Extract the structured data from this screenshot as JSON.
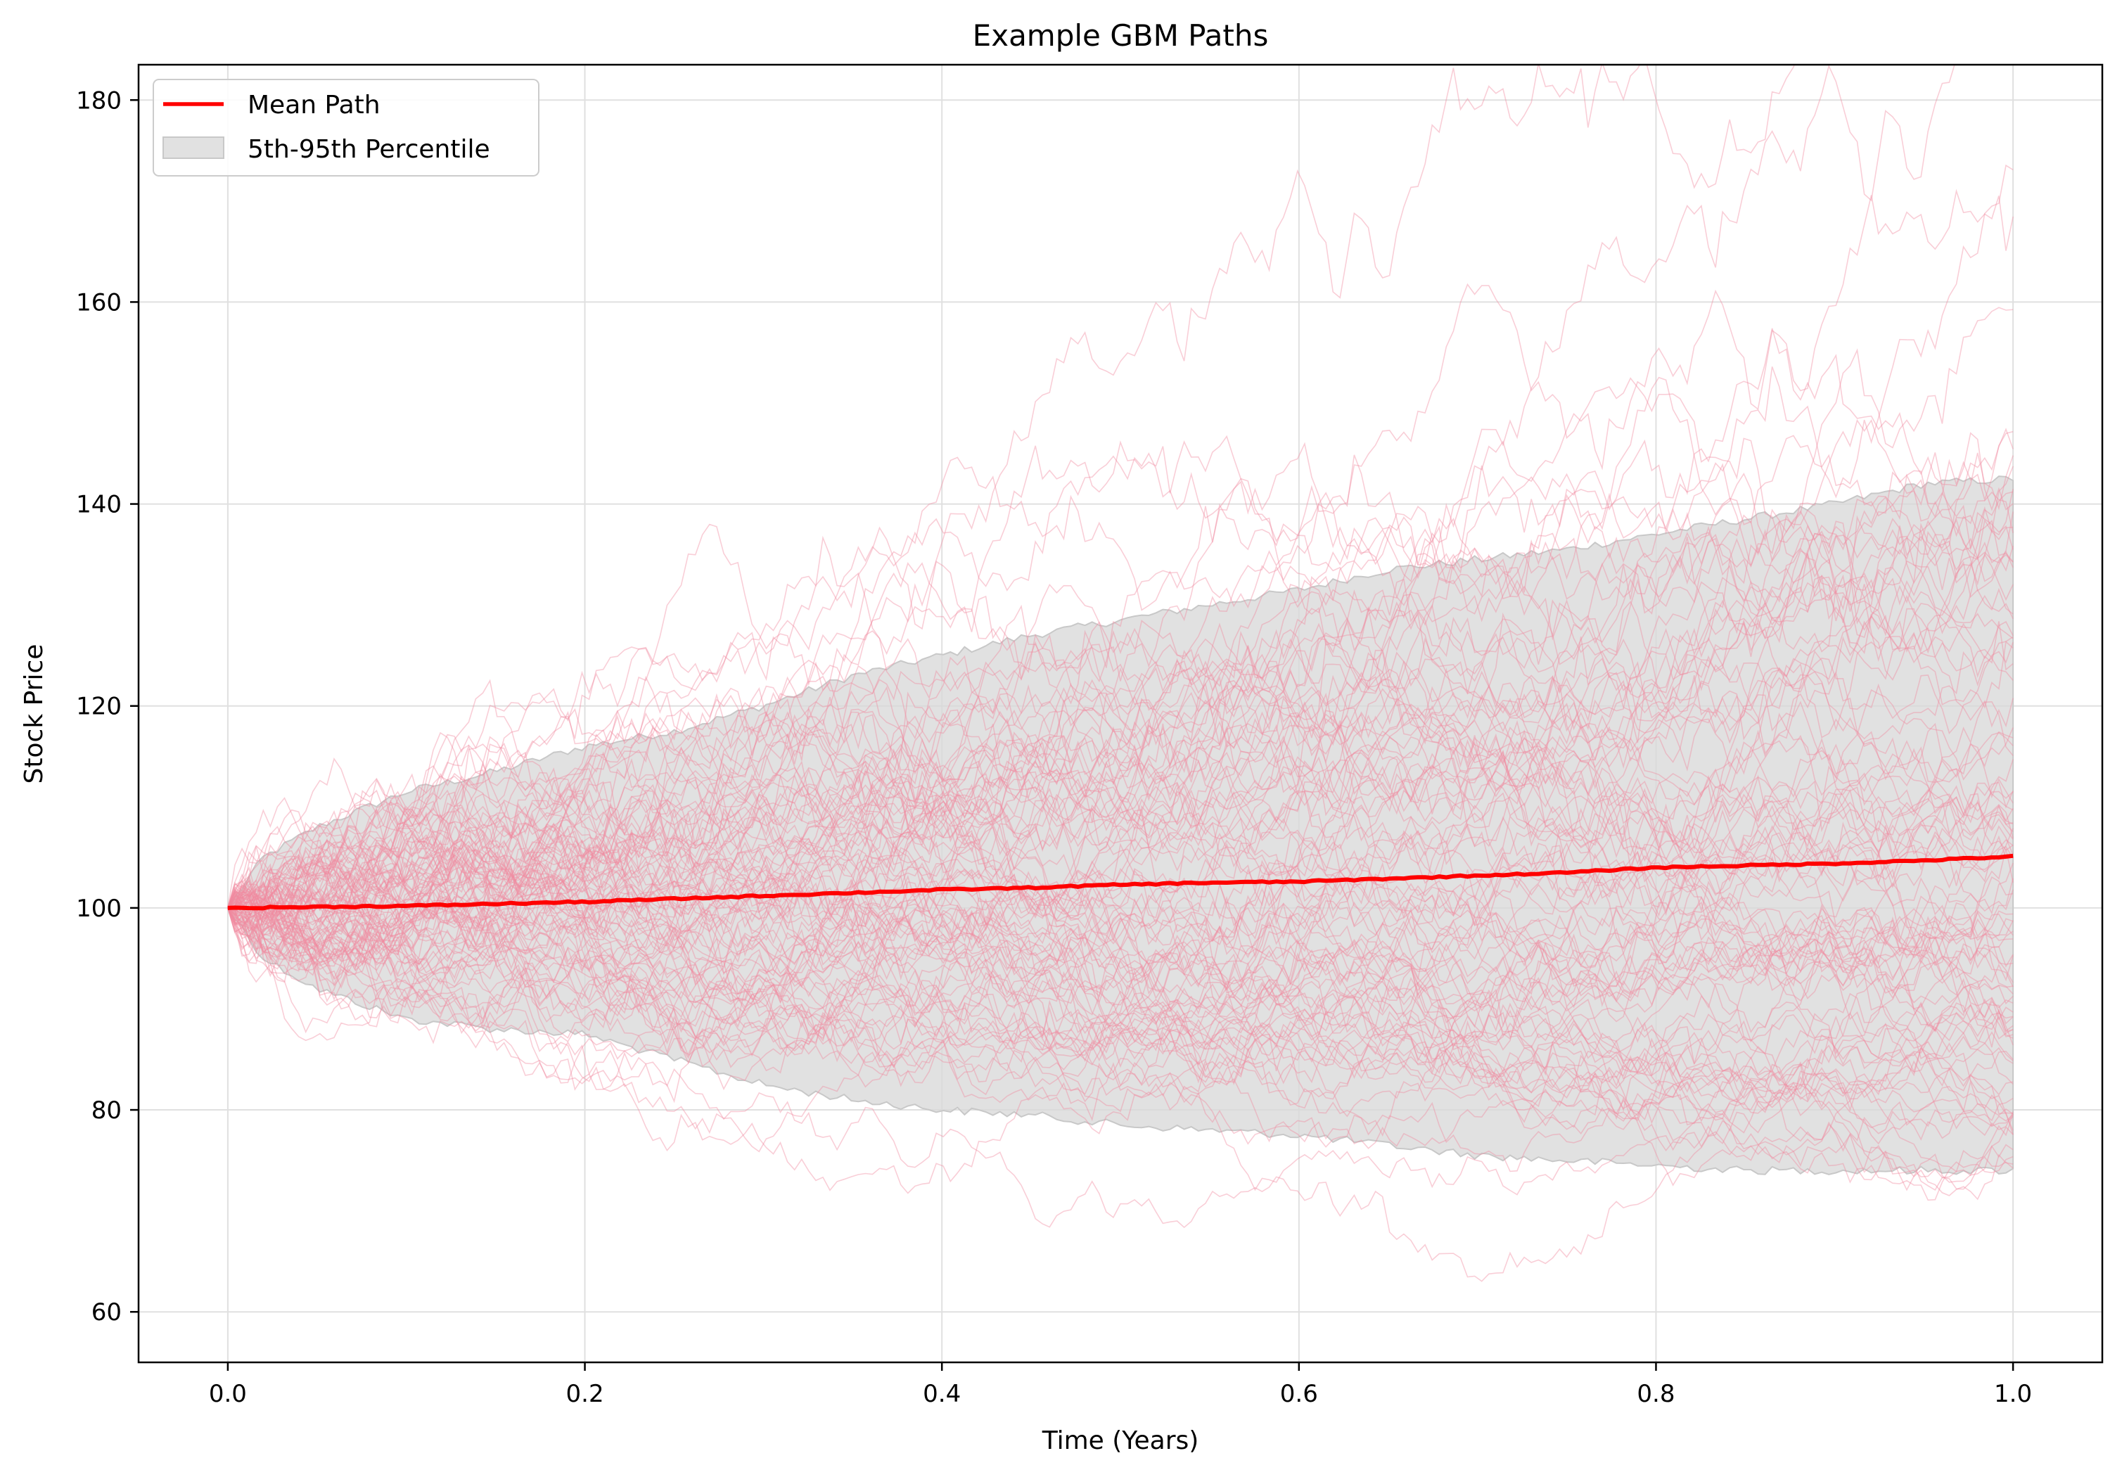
{
  "chart_data": {
    "type": "line",
    "title": "Example GBM Paths",
    "xlabel": "Time (Years)",
    "ylabel": "Stock Price",
    "xlim": [
      -0.05,
      1.05
    ],
    "ylim": [
      55,
      183.5
    ],
    "xticks": [
      0.0,
      0.2,
      0.4,
      0.6,
      0.8,
      1.0
    ],
    "xtick_labels": [
      "0.0",
      "0.2",
      "0.4",
      "0.6",
      "0.8",
      "1.0"
    ],
    "yticks": [
      60,
      80,
      100,
      120,
      140,
      160,
      180
    ],
    "ytick_labels": [
      "60",
      "80",
      "100",
      "120",
      "140",
      "160",
      "180"
    ],
    "grid": true,
    "legend_position": "top-left",
    "colors": {
      "mean": "#ff0000",
      "band_fill": "#d9d9d9",
      "band_edge": "#c8c8c8",
      "path": "#f08aa0",
      "grid": "#e0e0e0"
    },
    "legend": [
      {
        "label": "Mean Path",
        "kind": "line"
      },
      {
        "label": "5th-95th Percentile",
        "kind": "patch"
      }
    ],
    "series": [
      {
        "name": "Mean Path",
        "x": [
          0,
          0.05,
          0.1,
          0.15,
          0.2,
          0.25,
          0.3,
          0.35,
          0.4,
          0.45,
          0.5,
          0.55,
          0.6,
          0.65,
          0.7,
          0.75,
          0.8,
          0.85,
          0.9,
          0.95,
          1.0
        ],
        "y": [
          100,
          100.1,
          100.2,
          100.4,
          100.6,
          100.9,
          101.2,
          101.5,
          101.8,
          102.0,
          102.3,
          102.5,
          102.6,
          102.9,
          103.2,
          103.5,
          104.0,
          104.2,
          104.4,
          104.7,
          105.1
        ]
      },
      {
        "name": "5th-95th Percentile",
        "x": [
          0,
          0.02,
          0.05,
          0.1,
          0.15,
          0.2,
          0.25,
          0.3,
          0.35,
          0.4,
          0.45,
          0.5,
          0.55,
          0.6,
          0.65,
          0.7,
          0.75,
          0.8,
          0.85,
          0.9,
          0.95,
          1.0
        ],
        "upper": [
          100,
          105,
          108,
          111.5,
          113.5,
          116,
          117.5,
          120,
          123,
          125,
          127,
          128.5,
          130,
          131.5,
          133.5,
          134.5,
          135.5,
          137,
          138.5,
          140,
          142,
          142.5
        ],
        "lower": [
          100,
          95,
          92,
          89,
          88,
          87.5,
          85,
          82.5,
          81,
          80,
          79.5,
          78.5,
          78,
          77.5,
          76.5,
          75.5,
          75,
          74.5,
          74,
          74,
          74,
          74
        ]
      }
    ]
  }
}
